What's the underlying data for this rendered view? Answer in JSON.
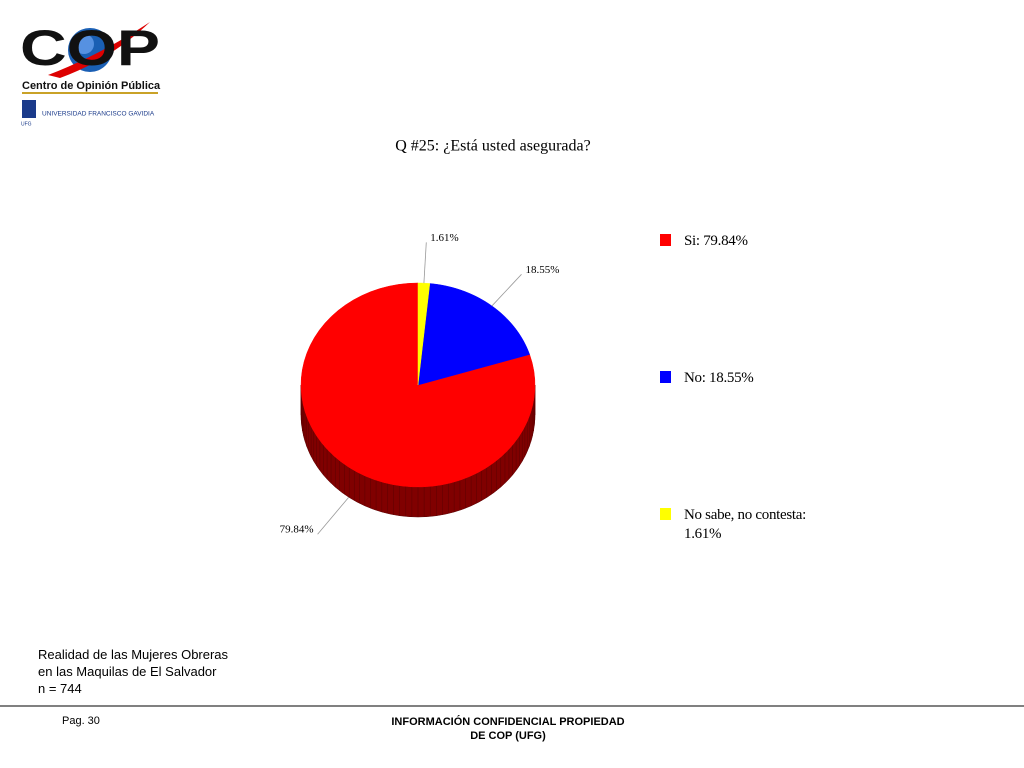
{
  "header": {
    "logo": "COP",
    "logo_subtitle": "Centro de Opinión Pública",
    "university": "UNIVERSIDAD FRANCISCO GAVIDIA",
    "university_short": "UFG"
  },
  "chart_data": {
    "type": "pie",
    "title": "Q #25: ¿Está usted asegurada?",
    "categories": [
      "Si: 79.84%",
      "No: 18.55%",
      "No sabe, no contesta: 1.61%"
    ],
    "values": [
      79.84,
      18.55,
      1.61
    ],
    "value_labels": [
      "79.84%",
      "18.55%",
      "1.61%"
    ],
    "colors": [
      "#ff0000",
      "#0000ff",
      "#ffff00"
    ],
    "legend": "right"
  },
  "footer": {
    "study_line1": "Realidad de las Mujeres Obreras",
    "study_line2": "en las Maquilas de El Salvador",
    "sample": "n = 744",
    "page": "Pag. 30",
    "confidential": "INFORMACIÓN CONFIDENCIAL PROPIEDAD DE COP (UFG)"
  }
}
